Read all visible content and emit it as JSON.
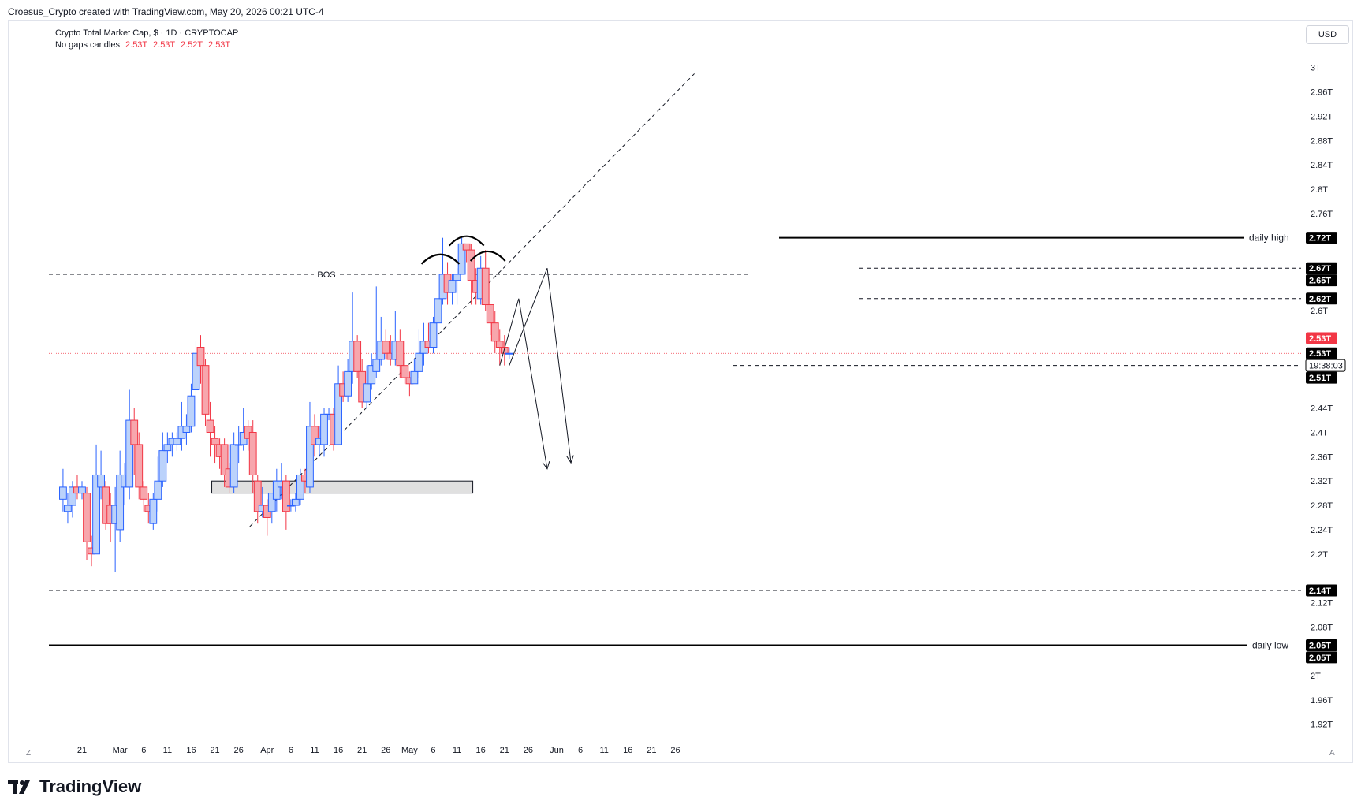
{
  "header": {
    "credit": "Croesus_Crypto created with TradingView.com, May 20, 2026 00:21 UTC-4"
  },
  "legend": {
    "title": "Crypto Total Market Cap, $ · 1D · CRYPTOCAP",
    "subtitle": "No gaps candles",
    "values": [
      "2.53T",
      "2.53T",
      "2.52T",
      "2.53T"
    ]
  },
  "currency_button": "USD",
  "corner_left": "Z",
  "corner_right": "A",
  "footer": {
    "logo_text": "TradingView"
  },
  "colors": {
    "up": "#2962ff",
    "up_fill": "#bbd2fb",
    "down": "#f23645",
    "down_fill": "#f7a6ad",
    "axis_text": "#131722"
  },
  "chart_data": {
    "type": "candlestick",
    "title": "Crypto Total Market Cap, $ · 1D · CRYPTOCAP",
    "ylim": [
      1.895,
      3.01
    ],
    "y_ticks": [
      "3T",
      "2.96T",
      "2.92T",
      "2.88T",
      "2.84T",
      "2.8T",
      "2.76T",
      "2.6T",
      "2.44T",
      "2.4T",
      "2.36T",
      "2.32T",
      "2.28T",
      "2.24T",
      "2.2T",
      "2.12T",
      "2.08T",
      "2T",
      "1.96T",
      "1.92T"
    ],
    "y_tick_values": [
      3.0,
      2.96,
      2.92,
      2.88,
      2.84,
      2.8,
      2.76,
      2.6,
      2.44,
      2.4,
      2.36,
      2.32,
      2.28,
      2.24,
      2.2,
      2.12,
      2.08,
      2.0,
      1.96,
      1.92
    ],
    "x_ticks": [
      {
        "label": "Z",
        "day": -7
      },
      {
        "label": "21",
        "day": 0
      },
      {
        "label": "Mar",
        "day": 8
      },
      {
        "label": "6",
        "day": 13
      },
      {
        "label": "11",
        "day": 18
      },
      {
        "label": "16",
        "day": 23
      },
      {
        "label": "21",
        "day": 28
      },
      {
        "label": "26",
        "day": 33
      },
      {
        "label": "Apr",
        "day": 39
      },
      {
        "label": "6",
        "day": 44
      },
      {
        "label": "11",
        "day": 49
      },
      {
        "label": "16",
        "day": 54
      },
      {
        "label": "21",
        "day": 59
      },
      {
        "label": "26",
        "day": 64
      },
      {
        "label": "May",
        "day": 69
      },
      {
        "label": "6",
        "day": 74
      },
      {
        "label": "11",
        "day": 79
      },
      {
        "label": "16",
        "day": 84
      },
      {
        "label": "21",
        "day": 89
      },
      {
        "label": "26",
        "day": 94
      },
      {
        "label": "Jun",
        "day": 100
      },
      {
        "label": "6",
        "day": 105
      },
      {
        "label": "11",
        "day": 110
      },
      {
        "label": "16",
        "day": 115
      },
      {
        "label": "21",
        "day": 120
      },
      {
        "label": "26",
        "day": 125
      }
    ],
    "candles": [
      [
        2.29,
        2.31,
        2.34,
        2.27
      ],
      [
        2.27,
        2.28,
        2.3,
        2.25
      ],
      [
        2.28,
        2.31,
        2.32,
        2.26
      ],
      [
        2.31,
        2.3,
        2.33,
        2.29
      ],
      [
        2.3,
        2.31,
        2.32,
        2.29
      ],
      [
        2.3,
        2.22,
        2.31,
        2.19
      ],
      [
        2.21,
        2.2,
        2.23,
        2.18
      ],
      [
        2.2,
        2.33,
        2.38,
        2.2
      ],
      [
        2.31,
        2.33,
        2.37,
        2.29
      ],
      [
        2.31,
        2.25,
        2.32,
        2.24
      ],
      [
        2.28,
        2.25,
        2.3,
        2.22
      ],
      [
        2.25,
        2.28,
        2.31,
        2.17
      ],
      [
        2.24,
        2.33,
        2.37,
        2.22
      ],
      [
        2.31,
        2.33,
        2.35,
        2.28
      ],
      [
        2.31,
        2.42,
        2.47,
        2.29
      ],
      [
        2.42,
        2.38,
        2.44,
        2.33
      ],
      [
        2.38,
        2.31,
        2.4,
        2.29
      ],
      [
        2.31,
        2.29,
        2.32,
        2.27
      ],
      [
        2.28,
        2.27,
        2.3,
        2.25
      ],
      [
        2.25,
        2.29,
        2.3,
        2.24
      ],
      [
        2.29,
        2.32,
        2.36,
        2.27
      ],
      [
        2.32,
        2.37,
        2.4,
        2.31
      ],
      [
        2.37,
        2.38,
        2.4,
        2.35
      ],
      [
        2.38,
        2.39,
        2.4,
        2.36
      ],
      [
        2.38,
        2.39,
        2.4,
        2.37
      ],
      [
        2.39,
        2.41,
        2.45,
        2.37
      ],
      [
        2.4,
        2.41,
        2.43,
        2.38
      ],
      [
        2.41,
        2.46,
        2.48,
        2.4
      ],
      [
        2.47,
        2.53,
        2.55,
        2.46
      ],
      [
        2.54,
        2.51,
        2.56,
        2.48
      ],
      [
        2.51,
        2.43,
        2.52,
        2.41
      ],
      [
        2.42,
        2.4,
        2.45,
        2.36
      ],
      [
        2.39,
        2.38,
        2.41,
        2.35
      ],
      [
        2.38,
        2.36,
        2.39,
        2.34
      ],
      [
        2.38,
        2.33,
        2.39,
        2.31
      ],
      [
        2.34,
        2.31,
        2.35,
        2.3
      ],
      [
        2.31,
        2.38,
        2.4,
        2.3
      ],
      [
        2.38,
        2.38,
        2.41,
        2.35
      ],
      [
        2.38,
        2.4,
        2.44,
        2.37
      ],
      [
        2.41,
        2.39,
        2.42,
        2.37
      ],
      [
        2.4,
        2.33,
        2.42,
        2.3
      ],
      [
        2.32,
        2.27,
        2.33,
        2.25
      ],
      [
        2.27,
        2.28,
        2.31,
        2.26
      ],
      [
        2.28,
        2.26,
        2.29,
        2.23
      ],
      [
        2.27,
        2.3,
        2.3,
        2.25
      ],
      [
        2.29,
        2.32,
        2.34,
        2.27
      ],
      [
        2.31,
        2.32,
        2.35,
        2.29
      ],
      [
        2.32,
        2.27,
        2.33,
        2.24
      ],
      [
        2.28,
        2.28,
        2.29,
        2.27
      ],
      [
        2.28,
        2.29,
        2.3,
        2.27
      ],
      [
        2.29,
        2.33,
        2.34,
        2.28
      ],
      [
        2.33,
        2.32,
        2.34,
        2.3
      ],
      [
        2.31,
        2.41,
        2.45,
        2.3
      ],
      [
        2.41,
        2.38,
        2.43,
        2.36
      ],
      [
        2.38,
        2.39,
        2.41,
        2.36
      ],
      [
        2.38,
        2.43,
        2.44,
        2.36
      ],
      [
        2.43,
        2.43,
        2.44,
        2.42
      ],
      [
        2.43,
        2.38,
        2.44,
        2.37
      ],
      [
        2.38,
        2.48,
        2.51,
        2.38
      ],
      [
        2.48,
        2.46,
        2.5,
        2.45
      ],
      [
        2.46,
        2.5,
        2.52,
        2.45
      ],
      [
        2.5,
        2.55,
        2.63,
        2.48
      ],
      [
        2.55,
        2.5,
        2.56,
        2.49
      ],
      [
        2.5,
        2.45,
        2.52,
        2.44
      ],
      [
        2.45,
        2.48,
        2.51,
        2.44
      ],
      [
        2.48,
        2.51,
        2.53,
        2.47
      ],
      [
        2.5,
        2.52,
        2.64,
        2.49
      ],
      [
        2.52,
        2.55,
        2.59,
        2.51
      ],
      [
        2.55,
        2.53,
        2.57,
        2.52
      ],
      [
        2.53,
        2.52,
        2.56,
        2.51
      ],
      [
        2.52,
        2.55,
        2.6,
        2.51
      ],
      [
        2.55,
        2.51,
        2.57,
        2.49
      ],
      [
        2.51,
        2.49,
        2.53,
        2.48
      ],
      [
        2.49,
        2.48,
        2.5,
        2.46
      ],
      [
        2.48,
        2.5,
        2.52,
        2.48
      ],
      [
        2.5,
        2.53,
        2.57,
        2.49
      ],
      [
        2.53,
        2.55,
        2.58,
        2.51
      ],
      [
        2.55,
        2.54,
        2.58,
        2.53
      ],
      [
        2.54,
        2.58,
        2.59,
        2.53
      ],
      [
        2.58,
        2.62,
        2.66,
        2.56
      ],
      [
        2.62,
        2.66,
        2.72,
        2.61
      ],
      [
        2.66,
        2.63,
        2.68,
        2.61
      ],
      [
        2.63,
        2.65,
        2.66,
        2.61
      ],
      [
        2.65,
        2.66,
        2.67,
        2.61
      ],
      [
        2.66,
        2.71,
        2.72,
        2.66
      ],
      [
        2.71,
        2.7,
        2.71,
        2.68
      ],
      [
        2.7,
        2.65,
        2.71,
        2.61
      ],
      [
        2.65,
        2.63,
        2.67,
        2.61
      ],
      [
        2.62,
        2.67,
        2.69,
        2.61
      ],
      [
        2.67,
        2.61,
        2.7,
        2.6
      ],
      [
        2.61,
        2.58,
        2.61,
        2.56
      ],
      [
        2.58,
        2.55,
        2.6,
        2.53
      ],
      [
        2.55,
        2.54,
        2.57,
        2.51
      ],
      [
        2.54,
        2.53,
        2.56,
        2.51
      ],
      [
        2.53,
        2.53,
        2.54,
        2.52
      ]
    ],
    "first_candle_day": -4,
    "annotations": {
      "bos": {
        "label": "BOS",
        "price": 2.66
      },
      "daily_high": {
        "label": "daily high",
        "price": 2.72
      },
      "daily_low": {
        "label": "daily low",
        "price": 2.05
      },
      "support_2_14": 2.14,
      "dashed_2_67": 2.67,
      "dashed_2_62": 2.62,
      "dashed_2_51": 2.51,
      "demand_zone": {
        "top": 2.32,
        "bottom": 2.3,
        "start_day": 27,
        "end_day": 79
      },
      "trendline": {
        "from": {
          "day": 35,
          "price": 2.245
        },
        "to": {
          "day": 130,
          "price": 2.99
        }
      },
      "projection_1": [
        {
          "day": 88,
          "price": 2.51
        },
        {
          "day": 92,
          "price": 2.62
        },
        {
          "day": 98,
          "price": 2.34
        }
      ],
      "projection_2": [
        {
          "day": 90,
          "price": 2.51
        },
        {
          "day": 98,
          "price": 2.67
        },
        {
          "day": 103,
          "price": 2.35
        }
      ]
    },
    "price_labels": [
      {
        "text": "2.72T",
        "price": 2.72,
        "bg": "#000000"
      },
      {
        "text": "2.67T",
        "price": 2.67,
        "bg": "#000000"
      },
      {
        "text": "2.65T",
        "price": 2.65,
        "bg": "#000000"
      },
      {
        "text": "2.62T",
        "price": 2.62,
        "bg": "#000000"
      },
      {
        "text": "2.53T",
        "price": 2.555,
        "bg": "#f23645"
      },
      {
        "text": "2.53T",
        "price": 2.53,
        "bg": "#000000"
      },
      {
        "text": "19:38:03",
        "price": 2.51,
        "bg": "#ffffff"
      },
      {
        "text": "2.51T",
        "price": 2.49,
        "bg": "#000000"
      },
      {
        "text": "2.14T",
        "price": 2.14,
        "bg": "#000000"
      },
      {
        "text": "2.05T",
        "price": 2.05,
        "bg": "#000000"
      },
      {
        "text": "2.05T",
        "price": 2.03,
        "bg": "#000000"
      }
    ]
  }
}
